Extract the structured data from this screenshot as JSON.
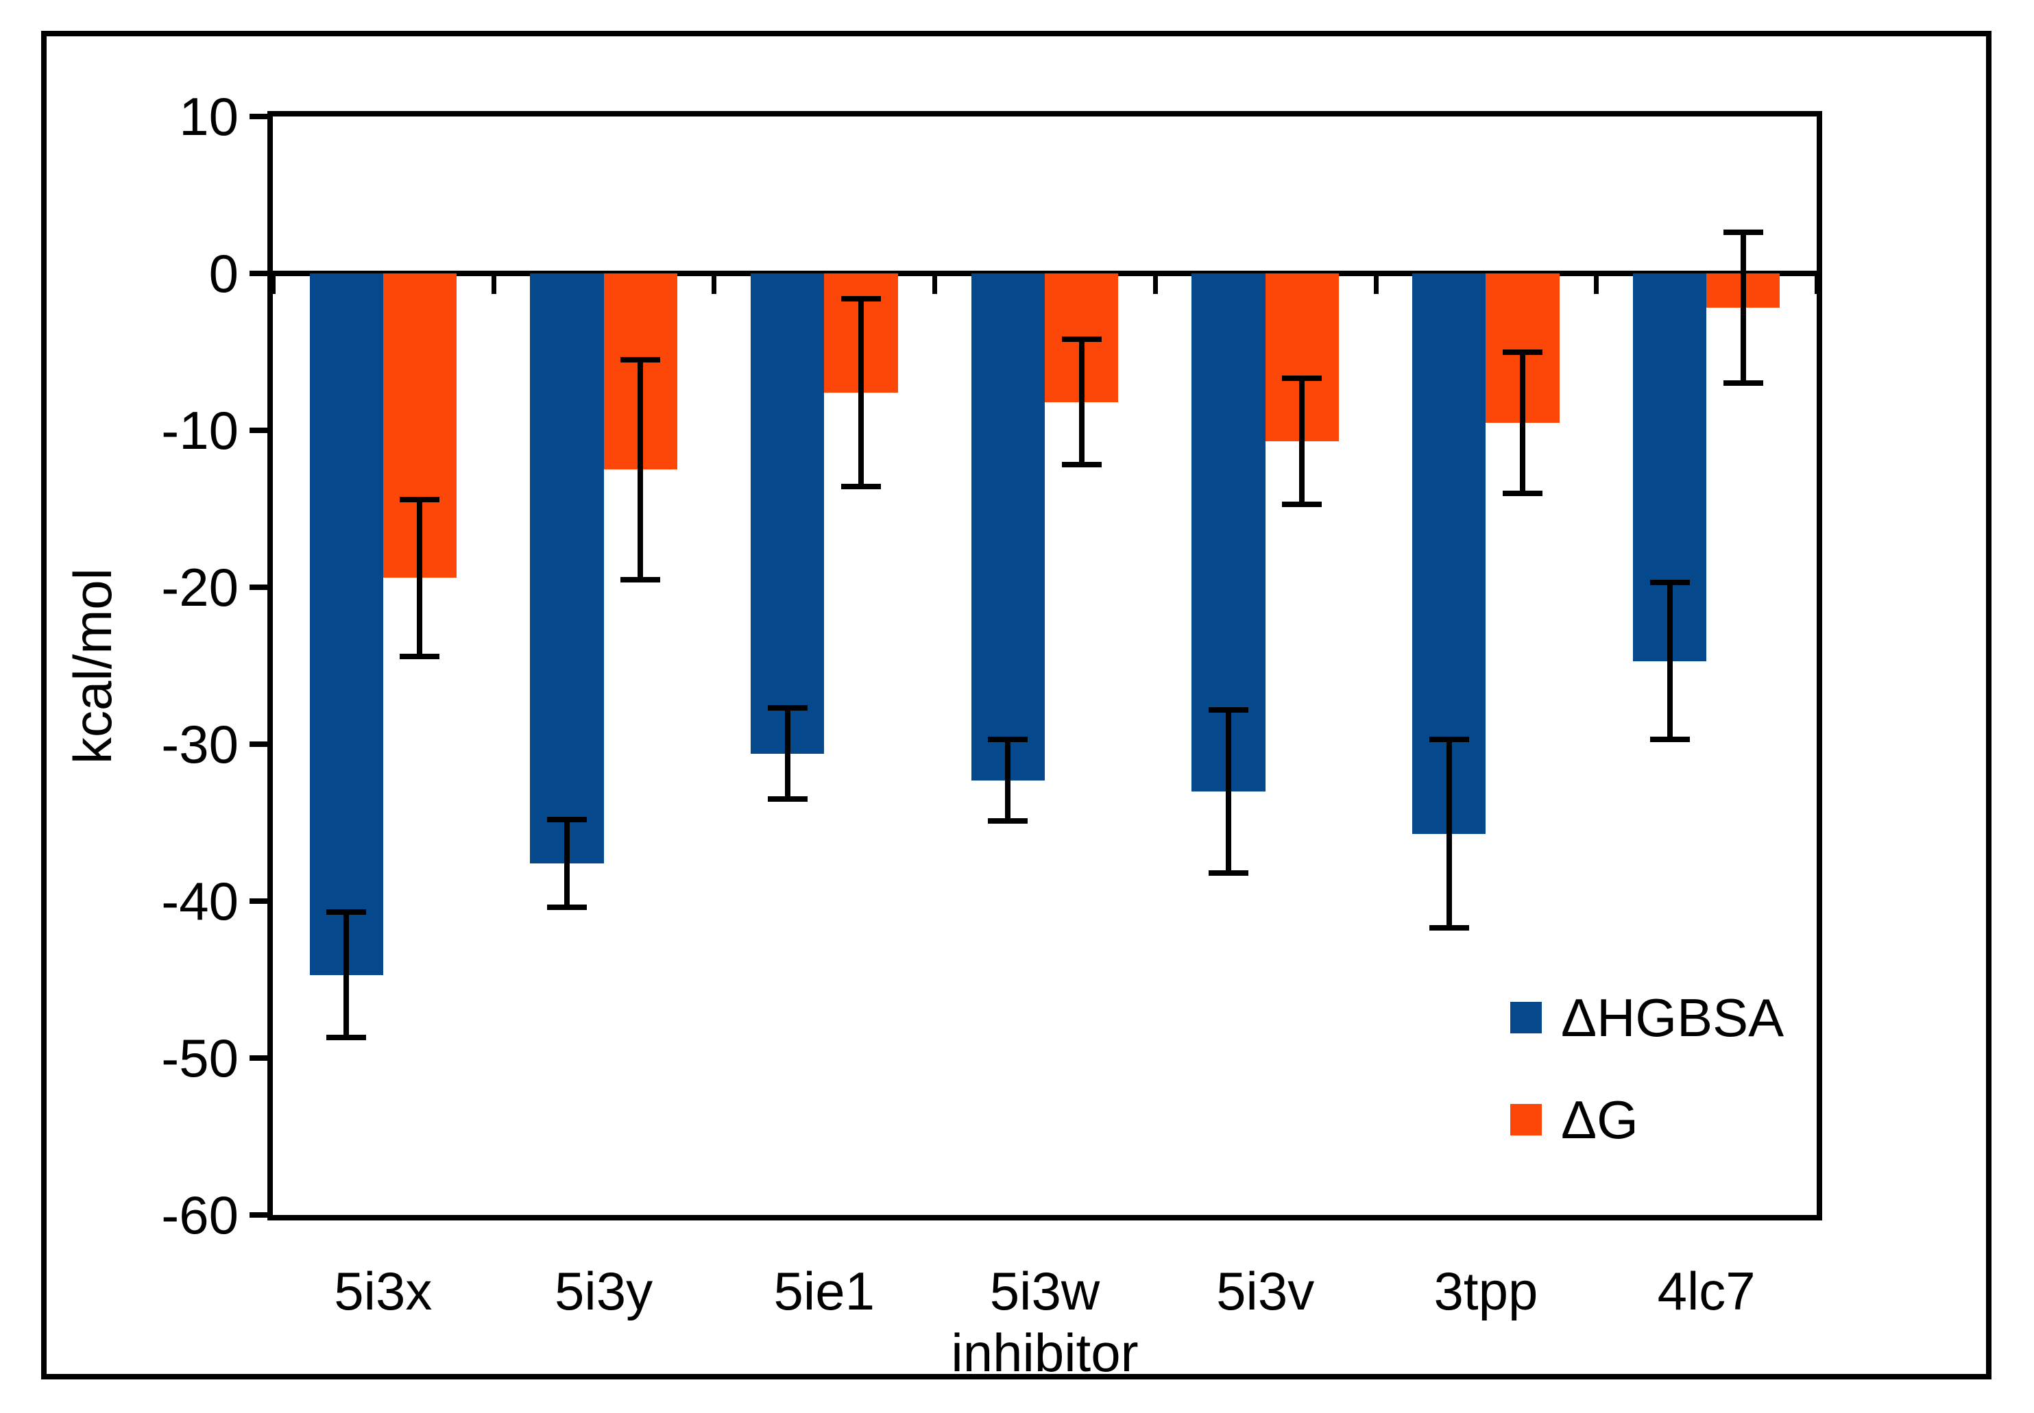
{
  "figure": {
    "background": "#ffffff",
    "border_color": "#000000"
  },
  "chart_data": {
    "type": "bar",
    "title": "",
    "xlabel": "inhibitor",
    "ylabel": "kcal/mol",
    "ylim": [
      -60,
      10
    ],
    "yticks": [
      10,
      0,
      -10,
      -20,
      -30,
      -40,
      -50,
      -60
    ],
    "grid": false,
    "legend_position": "lower-right",
    "error_bars": true,
    "categories": [
      "5i3x",
      "5i3y",
      "5ie1",
      "5i3w",
      "5i3v",
      "3tpp",
      "4lc7"
    ],
    "series": [
      {
        "name": "ΔHGBSA",
        "color": "#05498c",
        "values": [
          -44.7,
          -37.6,
          -30.6,
          -32.3,
          -33.0,
          -35.7,
          -24.7
        ],
        "errors": [
          4.0,
          2.8,
          2.9,
          2.6,
          5.2,
          6.0,
          5.0
        ]
      },
      {
        "name": "ΔG",
        "color": "#fc4708",
        "values": [
          -19.4,
          -12.5,
          -7.6,
          -8.2,
          -10.7,
          -9.5,
          -2.2
        ],
        "errors": [
          5.0,
          7.0,
          6.0,
          4.0,
          4.0,
          4.5,
          4.8
        ]
      }
    ]
  }
}
